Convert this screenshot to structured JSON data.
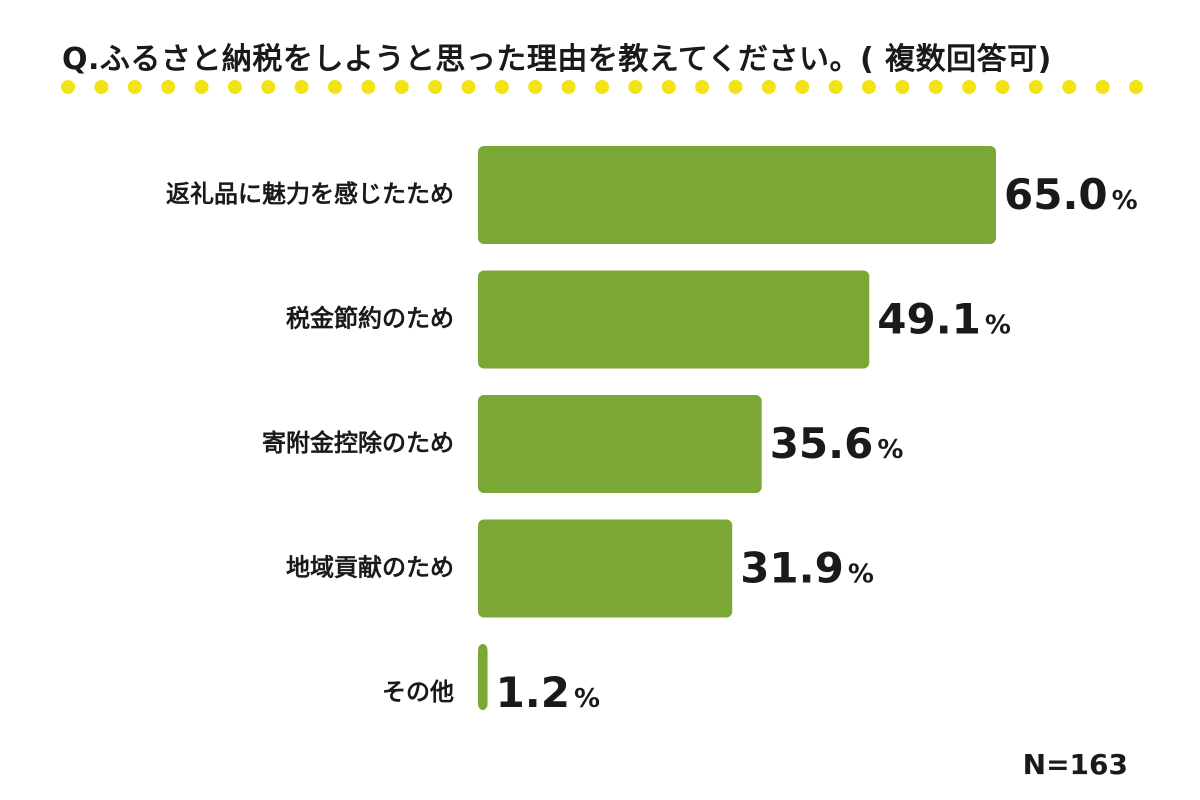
{
  "title": "Q.ふるさと納税をしようと思った理由を教えてください。( 複数回答可)",
  "note": "N=163",
  "colors": {
    "bar": "#7ba835",
    "dots": "#f2e414",
    "text": "#1a1a1a"
  },
  "chart_data": {
    "type": "bar",
    "orientation": "horizontal",
    "categories": [
      "返礼品に魅力を感じたため",
      "税金節約のため",
      "寄附金控除のため",
      "地域貢献のため",
      "その他"
    ],
    "values": [
      65.0,
      49.1,
      35.6,
      31.9,
      1.2
    ],
    "value_labels": [
      "65.0",
      "49.1",
      "35.6",
      "31.9",
      "1.2"
    ],
    "unit": "%",
    "xlim": [
      0,
      65
    ],
    "grid": false,
    "legend": "none"
  }
}
